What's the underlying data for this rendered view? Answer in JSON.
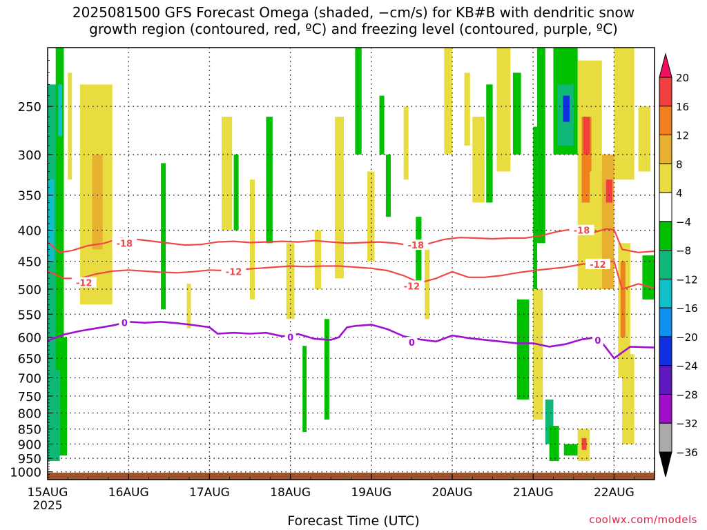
{
  "title": "2025081500 GFS Forecast Omega (shaded, −cm/s) for KB#B with dendritic snow\ngrowth region (contoured, red, ºC) and freezing level (contoured, purple, ºC)",
  "credit": "coolwx.com/models",
  "chart_data": {
    "type": "heatmap",
    "xlabel": "Forecast Time (UTC)",
    "ylabel": "",
    "x_ticks": [
      "15AUG",
      "16AUG",
      "17AUG",
      "18AUG",
      "19AUG",
      "20AUG",
      "21AUG",
      "22AUG"
    ],
    "x_first_year": "2025",
    "xlim_days": [
      0,
      7.5
    ],
    "y_log_pressure": true,
    "ylim_hPa": [
      1030,
      200
    ],
    "y_ticks": [
      250,
      300,
      350,
      400,
      450,
      500,
      550,
      600,
      650,
      700,
      750,
      800,
      850,
      900,
      950,
      1000
    ],
    "grid": true,
    "colorbar": {
      "labels": [
        "20",
        "16",
        "12",
        "8",
        "4",
        "−4",
        "−8",
        "−12",
        "−16",
        "−20",
        "−24",
        "−28",
        "−32",
        "−36"
      ],
      "colors": [
        "#f01060",
        "#f04040",
        "#f08020",
        "#e8b030",
        "#e8dc40",
        "#ffffff",
        "#00c000",
        "#10b878",
        "#10c0c8",
        "#1090f0",
        "#1030e0",
        "#6018c0",
        "#a010c8",
        "#aaaaaa",
        "#000000"
      ]
    },
    "series": [
      {
        "name": "-18",
        "color": "#f04848",
        "points": [
          [
            0,
            418
          ],
          [
            0.15,
            435
          ],
          [
            0.3,
            432
          ],
          [
            0.5,
            424
          ],
          [
            0.7,
            420
          ],
          [
            0.9,
            412
          ],
          [
            1.1,
            414
          ],
          [
            1.3,
            417
          ],
          [
            1.5,
            420
          ],
          [
            1.7,
            423
          ],
          [
            1.9,
            422
          ],
          [
            2.1,
            418
          ],
          [
            2.3,
            417
          ],
          [
            2.5,
            419
          ],
          [
            2.7,
            418
          ],
          [
            2.9,
            417
          ],
          [
            3.1,
            418
          ],
          [
            3.3,
            416
          ],
          [
            3.5,
            418
          ],
          [
            3.7,
            420
          ],
          [
            3.9,
            419
          ],
          [
            4.1,
            418
          ],
          [
            4.3,
            420
          ],
          [
            4.5,
            424
          ],
          [
            4.7,
            421
          ],
          [
            4.9,
            414
          ],
          [
            5.1,
            411
          ],
          [
            5.3,
            412
          ],
          [
            5.5,
            413
          ],
          [
            5.7,
            412
          ],
          [
            5.9,
            412
          ],
          [
            6.1,
            408
          ],
          [
            6.3,
            402
          ],
          [
            6.5,
            398
          ],
          [
            6.7,
            405
          ],
          [
            6.9,
            398
          ],
          [
            7.0,
            399
          ],
          [
            7.1,
            430
          ],
          [
            7.3,
            435
          ],
          [
            7.5,
            433
          ]
        ]
      },
      {
        "name": "-12",
        "color": "#f04848",
        "points": [
          [
            0,
            467
          ],
          [
            0.2,
            480
          ],
          [
            0.4,
            480
          ],
          [
            0.6,
            472
          ],
          [
            0.8,
            467
          ],
          [
            1.0,
            465
          ],
          [
            1.2,
            467
          ],
          [
            1.4,
            469
          ],
          [
            1.6,
            470
          ],
          [
            1.8,
            468
          ],
          [
            2.0,
            465
          ],
          [
            2.2,
            466
          ],
          [
            2.4,
            464
          ],
          [
            2.6,
            462
          ],
          [
            2.8,
            460
          ],
          [
            3.0,
            458
          ],
          [
            3.2,
            459
          ],
          [
            3.4,
            458
          ],
          [
            3.6,
            458
          ],
          [
            3.8,
            460
          ],
          [
            4.0,
            462
          ],
          [
            4.2,
            466
          ],
          [
            4.4,
            475
          ],
          [
            4.6,
            488
          ],
          [
            4.8,
            480
          ],
          [
            5.0,
            468
          ],
          [
            5.2,
            478
          ],
          [
            5.4,
            478
          ],
          [
            5.6,
            475
          ],
          [
            5.8,
            470
          ],
          [
            6.0,
            466
          ],
          [
            6.2,
            463
          ],
          [
            6.4,
            460
          ],
          [
            6.6,
            455
          ],
          [
            6.8,
            452
          ],
          [
            7.0,
            450
          ],
          [
            7.1,
            500
          ],
          [
            7.3,
            490
          ],
          [
            7.5,
            498
          ]
        ]
      },
      {
        "name": "0",
        "color": "#a010d0",
        "points": [
          [
            0,
            608
          ],
          [
            0.2,
            594
          ],
          [
            0.4,
            586
          ],
          [
            0.6,
            580
          ],
          [
            0.8,
            574
          ],
          [
            1.0,
            566
          ],
          [
            1.2,
            568
          ],
          [
            1.4,
            566
          ],
          [
            1.6,
            569
          ],
          [
            1.8,
            573
          ],
          [
            2.0,
            578
          ],
          [
            2.1,
            592
          ],
          [
            2.3,
            590
          ],
          [
            2.5,
            592
          ],
          [
            2.7,
            590
          ],
          [
            2.9,
            598
          ],
          [
            3.1,
            593
          ],
          [
            3.3,
            604
          ],
          [
            3.5,
            606
          ],
          [
            3.6,
            600
          ],
          [
            3.7,
            578
          ],
          [
            3.8,
            575
          ],
          [
            4.0,
            572
          ],
          [
            4.2,
            582
          ],
          [
            4.4,
            598
          ],
          [
            4.6,
            605
          ],
          [
            4.8,
            610
          ],
          [
            5.0,
            596
          ],
          [
            5.2,
            602
          ],
          [
            5.4,
            606
          ],
          [
            5.6,
            610
          ],
          [
            5.8,
            614
          ],
          [
            6.0,
            614
          ],
          [
            6.2,
            622
          ],
          [
            6.4,
            616
          ],
          [
            6.6,
            605
          ],
          [
            6.8,
            600
          ],
          [
            7.0,
            650
          ],
          [
            7.2,
            622
          ],
          [
            7.5,
            624
          ]
        ]
      }
    ],
    "contour_labels": [
      {
        "text": "-18",
        "x": 0.95,
        "p": 420
      },
      {
        "text": "-18",
        "x": 4.55,
        "p": 423
      },
      {
        "text": "-18",
        "x": 6.6,
        "p": 400
      },
      {
        "text": "-12",
        "x": 0.45,
        "p": 488
      },
      {
        "text": "-12",
        "x": 2.3,
        "p": 468
      },
      {
        "text": "-12",
        "x": 4.5,
        "p": 494
      },
      {
        "text": "-12",
        "x": 6.8,
        "p": 455
      },
      {
        "text": "0",
        "x": 0.95,
        "p": 568
      },
      {
        "text": "0",
        "x": 3.0,
        "p": 600
      },
      {
        "text": "0",
        "x": 4.5,
        "p": 612
      },
      {
        "text": "0",
        "x": 6.8,
        "p": 607
      }
    ],
    "omega_regions": [
      {
        "x0": 0.0,
        "x1": 0.15,
        "p0": 230,
        "p1": 960,
        "value": -10
      },
      {
        "x0": 0.0,
        "x1": 0.08,
        "p0": 330,
        "p1": 450,
        "value": -13
      },
      {
        "x0": 0.02,
        "x1": 0.1,
        "p0": 580,
        "p1": 760,
        "value": -10
      },
      {
        "x0": 0.1,
        "x1": 0.2,
        "p0": 200,
        "p1": 680,
        "value": -6
      },
      {
        "x0": 0.13,
        "x1": 0.18,
        "p0": 230,
        "p1": 280,
        "value": -14
      },
      {
        "x0": 0.15,
        "x1": 0.24,
        "p0": 600,
        "p1": 940,
        "value": -6
      },
      {
        "x0": 0.4,
        "x1": 0.8,
        "p0": 230,
        "p1": 530,
        "value": 5
      },
      {
        "x0": 0.55,
        "x1": 0.68,
        "p0": 300,
        "p1": 430,
        "value": 9
      },
      {
        "x0": 0.25,
        "x1": 0.3,
        "p0": 220,
        "p1": 330,
        "value": 5
      },
      {
        "x0": 1.4,
        "x1": 1.46,
        "p0": 310,
        "p1": 540,
        "value": -6
      },
      {
        "x0": 1.72,
        "x1": 1.77,
        "p0": 490,
        "p1": 580,
        "value": 5
      },
      {
        "x0": 2.15,
        "x1": 2.28,
        "p0": 260,
        "p1": 400,
        "value": 5
      },
      {
        "x0": 2.3,
        "x1": 2.36,
        "p0": 300,
        "p1": 400,
        "value": -6
      },
      {
        "x0": 2.5,
        "x1": 2.56,
        "p0": 330,
        "p1": 520,
        "value": 5
      },
      {
        "x0": 2.7,
        "x1": 2.78,
        "p0": 260,
        "p1": 420,
        "value": -6
      },
      {
        "x0": 2.95,
        "x1": 3.05,
        "p0": 420,
        "p1": 560,
        "value": 5
      },
      {
        "x0": 3.15,
        "x1": 3.2,
        "p0": 620,
        "p1": 860,
        "value": -6
      },
      {
        "x0": 3.3,
        "x1": 3.38,
        "p0": 400,
        "p1": 500,
        "value": 5
      },
      {
        "x0": 3.42,
        "x1": 3.48,
        "p0": 560,
        "p1": 820,
        "value": -6
      },
      {
        "x0": 3.55,
        "x1": 3.66,
        "p0": 260,
        "p1": 480,
        "value": 5
      },
      {
        "x0": 3.8,
        "x1": 3.88,
        "p0": 200,
        "p1": 300,
        "value": -6
      },
      {
        "x0": 3.95,
        "x1": 4.04,
        "p0": 320,
        "p1": 450,
        "value": 5
      },
      {
        "x0": 4.1,
        "x1": 4.16,
        "p0": 240,
        "p1": 300,
        "value": -6
      },
      {
        "x0": 4.18,
        "x1": 4.24,
        "p0": 300,
        "p1": 380,
        "value": -6
      },
      {
        "x0": 4.4,
        "x1": 4.46,
        "p0": 250,
        "p1": 330,
        "value": 5
      },
      {
        "x0": 4.55,
        "x1": 4.62,
        "p0": 380,
        "p1": 500,
        "value": -6
      },
      {
        "x0": 4.66,
        "x1": 4.72,
        "p0": 430,
        "p1": 560,
        "value": 5
      },
      {
        "x0": 4.9,
        "x1": 5.0,
        "p0": 200,
        "p1": 300,
        "value": 5
      },
      {
        "x0": 5.15,
        "x1": 5.22,
        "p0": 220,
        "p1": 290,
        "value": 5
      },
      {
        "x0": 5.25,
        "x1": 5.4,
        "p0": 260,
        "p1": 360,
        "value": 5
      },
      {
        "x0": 5.42,
        "x1": 5.5,
        "p0": 230,
        "p1": 360,
        "value": -6
      },
      {
        "x0": 5.55,
        "x1": 5.72,
        "p0": 200,
        "p1": 320,
        "value": 5
      },
      {
        "x0": 5.75,
        "x1": 5.85,
        "p0": 220,
        "p1": 300,
        "value": -6
      },
      {
        "x0": 6.0,
        "x1": 6.05,
        "p0": 270,
        "p1": 760,
        "value": -6
      },
      {
        "x0": 5.8,
        "x1": 5.95,
        "p0": 520,
        "p1": 760,
        "value": -6
      },
      {
        "x0": 6.0,
        "x1": 6.12,
        "p0": 500,
        "p1": 820,
        "value": 5
      },
      {
        "x0": 6.05,
        "x1": 6.15,
        "p0": 200,
        "p1": 420,
        "value": -6
      },
      {
        "x0": 6.15,
        "x1": 6.25,
        "p0": 760,
        "p1": 900,
        "value": -10
      },
      {
        "x0": 6.2,
        "x1": 6.32,
        "p0": 840,
        "p1": 960,
        "value": -6
      },
      {
        "x0": 6.25,
        "x1": 6.55,
        "p0": 200,
        "p1": 300,
        "value": -6
      },
      {
        "x0": 6.3,
        "x1": 6.5,
        "p0": 230,
        "p1": 290,
        "value": -10
      },
      {
        "x0": 6.37,
        "x1": 6.45,
        "p0": 240,
        "p1": 265,
        "value": -20
      },
      {
        "x0": 6.55,
        "x1": 6.85,
        "p0": 210,
        "p1": 500,
        "value": 5
      },
      {
        "x0": 6.6,
        "x1": 6.72,
        "p0": 260,
        "p1": 360,
        "value": 12
      },
      {
        "x0": 6.62,
        "x1": 6.7,
        "p0": 260,
        "p1": 300,
        "value": 16
      },
      {
        "x0": 6.38,
        "x1": 6.55,
        "p0": 900,
        "p1": 940,
        "value": -6
      },
      {
        "x0": 6.55,
        "x1": 6.7,
        "p0": 850,
        "p1": 960,
        "value": 5
      },
      {
        "x0": 6.6,
        "x1": 6.66,
        "p0": 880,
        "p1": 920,
        "value": 16
      },
      {
        "x0": 6.7,
        "x1": 7.0,
        "p0": 320,
        "p1": 440,
        "value": 5
      },
      {
        "x0": 6.85,
        "x1": 7.0,
        "p0": 300,
        "p1": 500,
        "value": 9
      },
      {
        "x0": 6.9,
        "x1": 6.98,
        "p0": 330,
        "p1": 360,
        "value": 16
      },
      {
        "x0": 7.0,
        "x1": 7.25,
        "p0": 200,
        "p1": 330,
        "value": 5
      },
      {
        "x0": 7.05,
        "x1": 7.2,
        "p0": 420,
        "p1": 700,
        "value": 5
      },
      {
        "x0": 7.08,
        "x1": 7.14,
        "p0": 450,
        "p1": 600,
        "value": 12
      },
      {
        "x0": 7.1,
        "x1": 7.25,
        "p0": 640,
        "p1": 900,
        "value": 5
      },
      {
        "x0": 7.3,
        "x1": 7.45,
        "p0": 250,
        "p1": 320,
        "value": 5
      },
      {
        "x0": 7.35,
        "x1": 7.5,
        "p0": 440,
        "p1": 520,
        "value": -6
      }
    ]
  }
}
